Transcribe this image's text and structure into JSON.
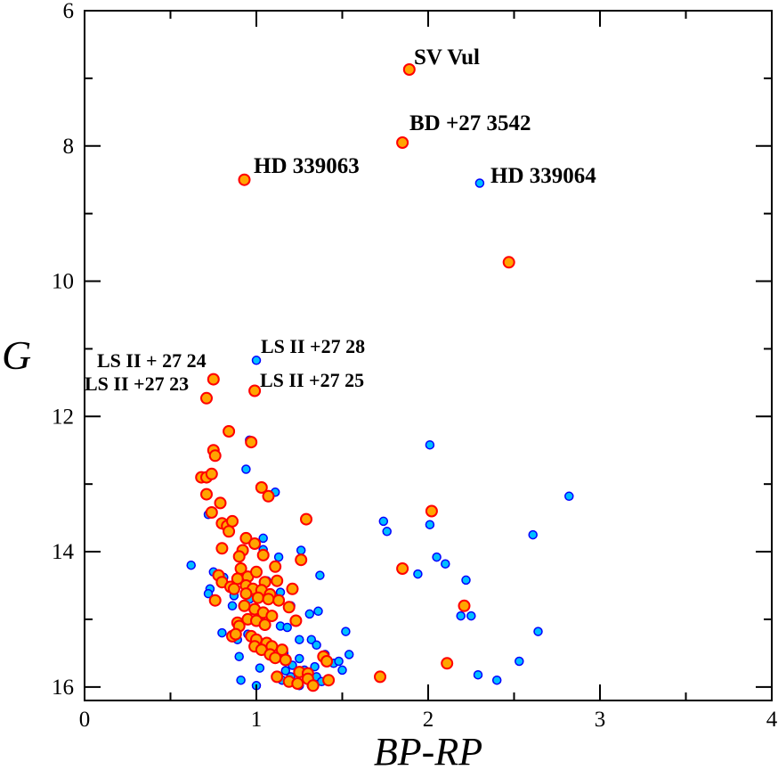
{
  "chart_data": {
    "type": "scatter",
    "title": "",
    "xlabel": "BP-RP",
    "ylabel": "G",
    "xlim": [
      0,
      4
    ],
    "ylim": [
      6,
      16.2
    ],
    "y_inverted": true,
    "grid": false,
    "x_ticks": [
      0,
      1,
      2,
      3,
      4
    ],
    "y_ticks": [
      6,
      8,
      10,
      12,
      14,
      16
    ],
    "x_tick_labels": [
      "0",
      "1",
      "2",
      "3",
      "4"
    ],
    "y_tick_labels": [
      "6",
      "8",
      "10",
      "12",
      "14",
      "16"
    ],
    "series": [
      {
        "name": "blue",
        "color": "#00bfff",
        "edge_color": "#0000ff",
        "points": [
          [
            2.3,
            8.55
          ],
          [
            1.0,
            11.17
          ],
          [
            0.96,
            12.35
          ],
          [
            2.01,
            12.42
          ],
          [
            0.94,
            12.78
          ],
          [
            1.11,
            13.12
          ],
          [
            2.82,
            13.18
          ],
          [
            0.72,
            13.45
          ],
          [
            1.74,
            13.55
          ],
          [
            1.76,
            13.7
          ],
          [
            2.01,
            13.6
          ],
          [
            2.61,
            13.75
          ],
          [
            1.04,
            13.8
          ],
          [
            1.26,
            13.98
          ],
          [
            1.04,
            13.97
          ],
          [
            1.13,
            14.08
          ],
          [
            2.05,
            14.08
          ],
          [
            2.1,
            14.18
          ],
          [
            0.62,
            14.2
          ],
          [
            0.75,
            14.3
          ],
          [
            1.37,
            14.35
          ],
          [
            0.93,
            14.4
          ],
          [
            0.81,
            14.38
          ],
          [
            0.86,
            14.5
          ],
          [
            0.73,
            14.55
          ],
          [
            1.06,
            14.43
          ],
          [
            1.14,
            14.6
          ],
          [
            0.96,
            14.7
          ],
          [
            1.94,
            14.33
          ],
          [
            2.22,
            14.42
          ],
          [
            0.72,
            14.62
          ],
          [
            0.87,
            14.65
          ],
          [
            0.86,
            14.8
          ],
          [
            1.2,
            14.8
          ],
          [
            1.31,
            14.92
          ],
          [
            1.36,
            14.88
          ],
          [
            2.19,
            14.95
          ],
          [
            2.25,
            14.95
          ],
          [
            1.03,
            15.05
          ],
          [
            1.14,
            15.1
          ],
          [
            1.18,
            15.12
          ],
          [
            0.8,
            15.2
          ],
          [
            0.95,
            15.22
          ],
          [
            0.89,
            15.3
          ],
          [
            1.52,
            15.18
          ],
          [
            2.64,
            15.18
          ],
          [
            1.25,
            15.3
          ],
          [
            1.32,
            15.3
          ],
          [
            1.35,
            15.38
          ],
          [
            1.07,
            15.42
          ],
          [
            1.16,
            15.5
          ],
          [
            1.4,
            15.52
          ],
          [
            1.54,
            15.52
          ],
          [
            0.9,
            15.55
          ],
          [
            1.25,
            15.58
          ],
          [
            1.45,
            15.65
          ],
          [
            1.21,
            15.68
          ],
          [
            1.34,
            15.7
          ],
          [
            1.48,
            15.62
          ],
          [
            2.53,
            15.62
          ],
          [
            1.02,
            15.72
          ],
          [
            1.17,
            15.76
          ],
          [
            1.28,
            15.75
          ],
          [
            1.5,
            15.75
          ],
          [
            2.29,
            15.82
          ],
          [
            1.2,
            15.85
          ],
          [
            1.35,
            15.85
          ],
          [
            0.91,
            15.9
          ],
          [
            1.15,
            15.9
          ],
          [
            2.4,
            15.9
          ],
          [
            1.25,
            15.98
          ],
          [
            1.32,
            15.98
          ],
          [
            1.0,
            15.98
          ],
          [
            1.38,
            15.92
          ]
        ]
      },
      {
        "name": "orange",
        "color": "#ffa500",
        "edge_color": "#ff0000",
        "points": [
          [
            1.89,
            6.87
          ],
          [
            1.85,
            7.95
          ],
          [
            0.93,
            8.5
          ],
          [
            2.47,
            9.72
          ],
          [
            0.75,
            11.45
          ],
          [
            0.71,
            11.73
          ],
          [
            0.99,
            11.62
          ],
          [
            0.84,
            12.22
          ],
          [
            0.75,
            12.5
          ],
          [
            0.76,
            12.58
          ],
          [
            0.97,
            12.38
          ],
          [
            0.68,
            12.9
          ],
          [
            0.71,
            12.9
          ],
          [
            0.74,
            12.85
          ],
          [
            1.03,
            13.05
          ],
          [
            1.07,
            13.18
          ],
          [
            0.71,
            13.15
          ],
          [
            0.79,
            13.28
          ],
          [
            1.29,
            13.52
          ],
          [
            2.02,
            13.4
          ],
          [
            0.74,
            13.42
          ],
          [
            0.8,
            13.58
          ],
          [
            0.83,
            13.62
          ],
          [
            0.86,
            13.55
          ],
          [
            0.84,
            13.7
          ],
          [
            0.94,
            13.8
          ],
          [
            0.99,
            13.88
          ],
          [
            1.04,
            14.05
          ],
          [
            0.8,
            13.95
          ],
          [
            0.92,
            13.98
          ],
          [
            0.9,
            14.07
          ],
          [
            1.26,
            14.12
          ],
          [
            1.11,
            14.22
          ],
          [
            1.85,
            14.25
          ],
          [
            0.78,
            14.35
          ],
          [
            0.8,
            14.45
          ],
          [
            0.89,
            14.4
          ],
          [
            0.91,
            14.25
          ],
          [
            0.95,
            14.37
          ],
          [
            1.0,
            14.3
          ],
          [
            1.05,
            14.45
          ],
          [
            1.12,
            14.43
          ],
          [
            0.85,
            14.52
          ],
          [
            0.87,
            14.55
          ],
          [
            0.94,
            14.5
          ],
          [
            0.98,
            14.55
          ],
          [
            1.03,
            14.57
          ],
          [
            1.08,
            14.63
          ],
          [
            1.21,
            14.55
          ],
          [
            0.76,
            14.72
          ],
          [
            0.94,
            14.62
          ],
          [
            1.01,
            14.68
          ],
          [
            1.07,
            14.7
          ],
          [
            1.13,
            14.72
          ],
          [
            1.19,
            14.82
          ],
          [
            2.21,
            14.8
          ],
          [
            0.93,
            14.8
          ],
          [
            0.99,
            14.85
          ],
          [
            1.04,
            14.9
          ],
          [
            1.09,
            14.95
          ],
          [
            0.89,
            15.05
          ],
          [
            0.95,
            15.0
          ],
          [
            1.0,
            15.02
          ],
          [
            1.05,
            15.08
          ],
          [
            1.23,
            15.02
          ],
          [
            0.9,
            15.1
          ],
          [
            0.86,
            15.25
          ],
          [
            0.88,
            15.22
          ],
          [
            0.97,
            15.25
          ],
          [
            1.0,
            15.3
          ],
          [
            1.06,
            15.35
          ],
          [
            0.99,
            15.4
          ],
          [
            1.03,
            15.45
          ],
          [
            1.09,
            15.4
          ],
          [
            1.15,
            15.45
          ],
          [
            1.08,
            15.52
          ],
          [
            1.11,
            15.57
          ],
          [
            1.17,
            15.6
          ],
          [
            1.39,
            15.55
          ],
          [
            1.41,
            15.62
          ],
          [
            2.11,
            15.65
          ],
          [
            1.25,
            15.78
          ],
          [
            1.3,
            15.8
          ],
          [
            1.12,
            15.85
          ],
          [
            1.3,
            15.88
          ],
          [
            1.72,
            15.85
          ],
          [
            1.19,
            15.92
          ],
          [
            1.24,
            15.95
          ],
          [
            1.33,
            15.98
          ],
          [
            1.42,
            15.9
          ]
        ]
      }
    ],
    "annotations": [
      "SV Vul",
      "BD +27 3542",
      "HD 339063",
      "HD 339064",
      "LS II +27 28",
      "LS II + 27 24",
      "LS II +27 23",
      "LS II +27 25"
    ]
  }
}
